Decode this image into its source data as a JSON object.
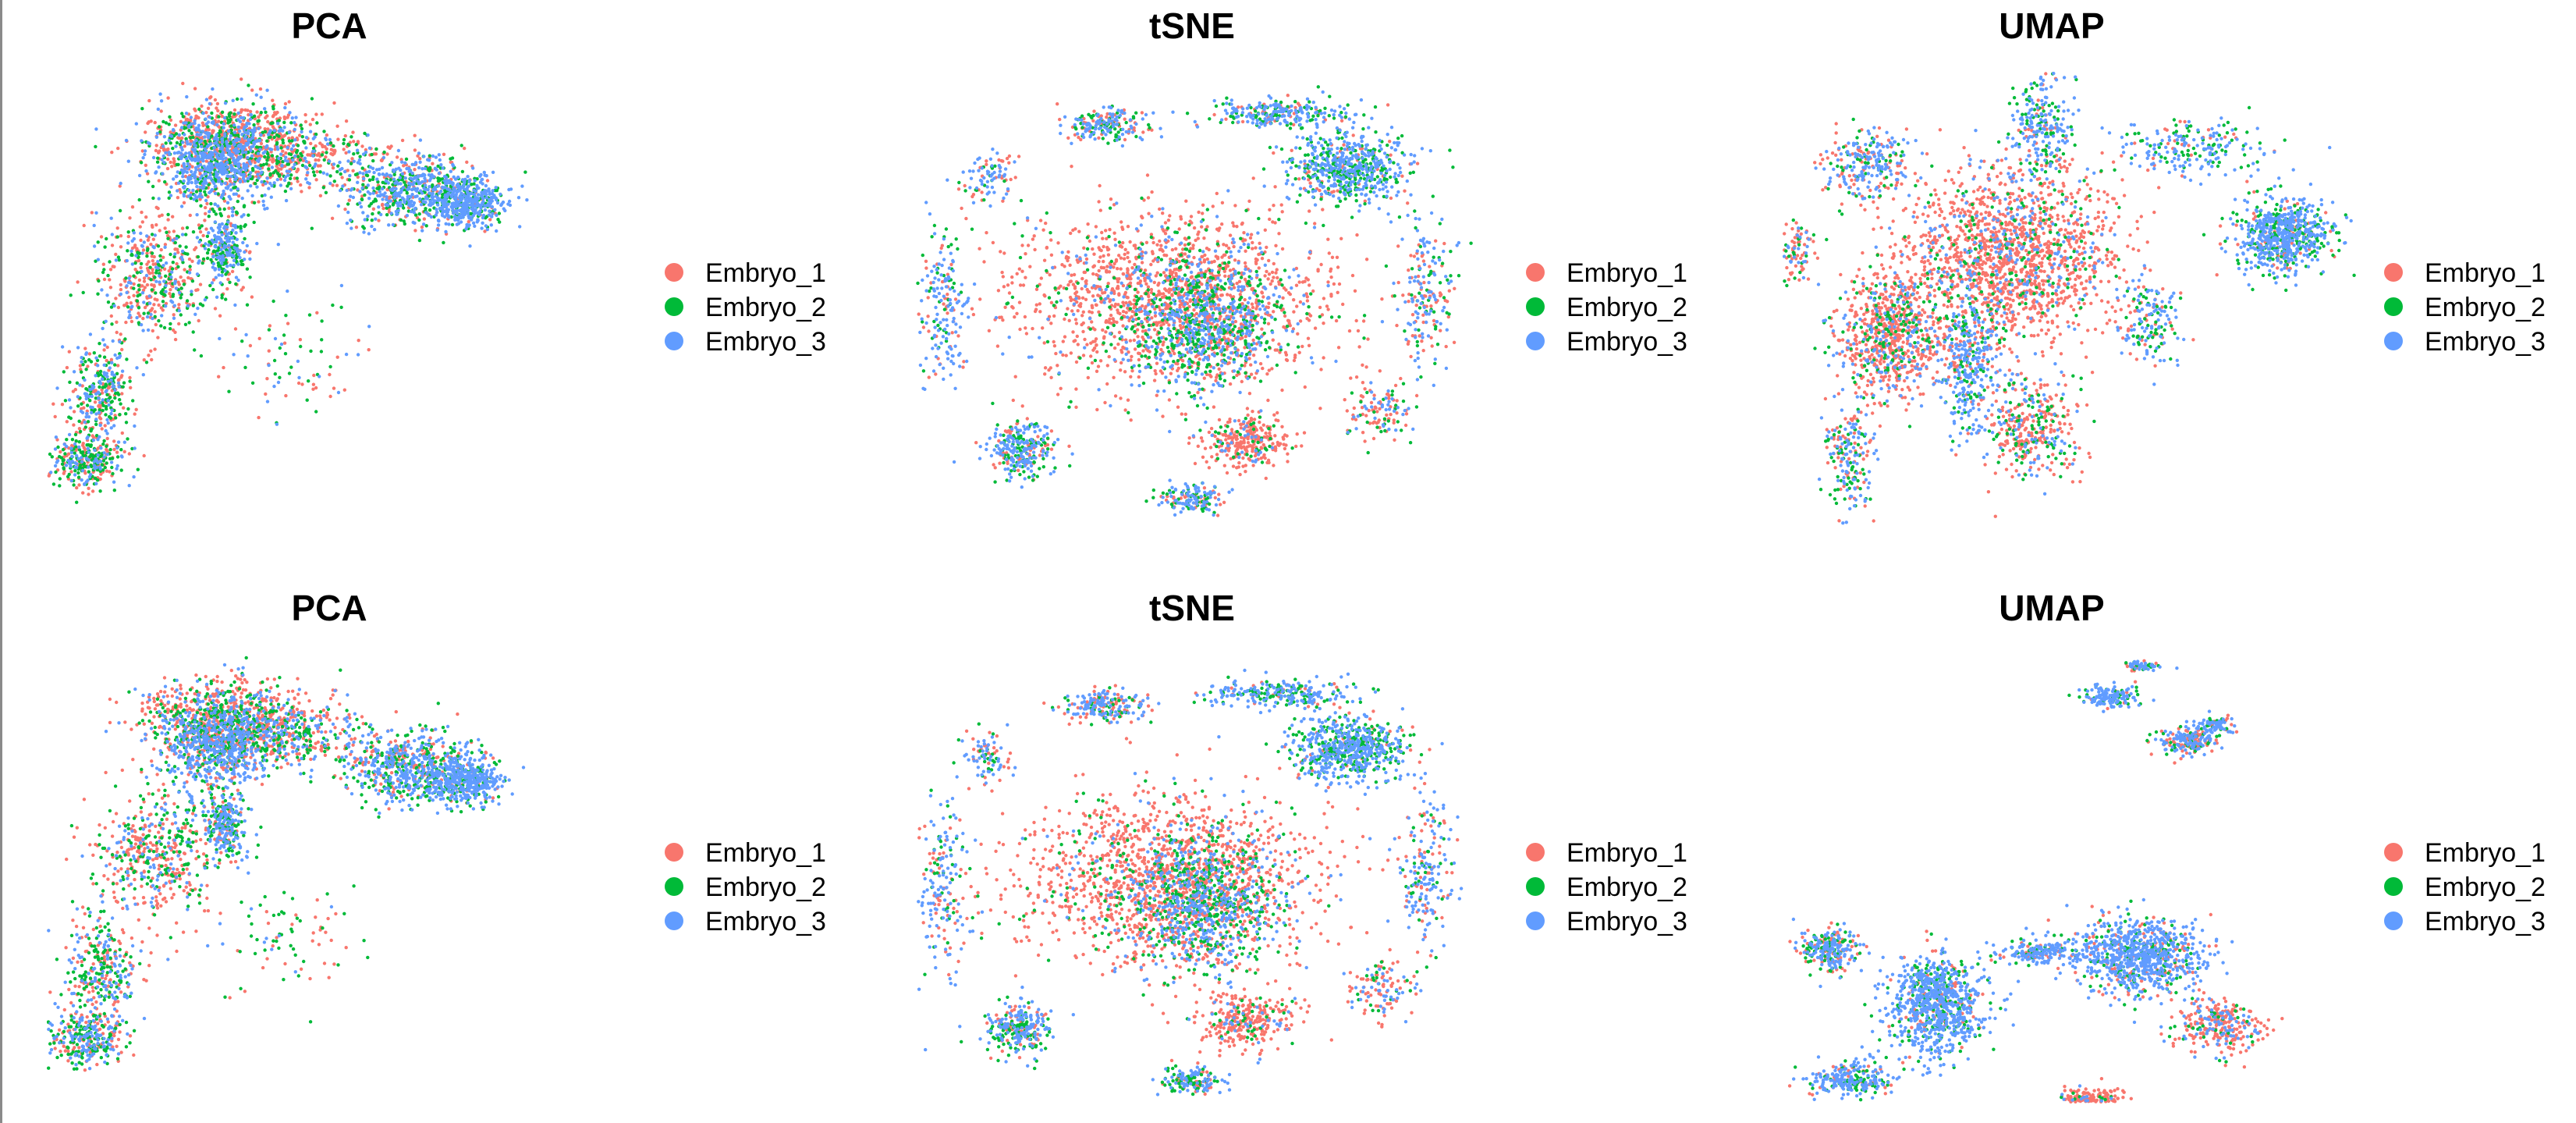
{
  "figure": {
    "panels": [
      {
        "id": "pca-top",
        "title": "PCA",
        "legend": [
          "Embryo_1",
          "Embryo_2",
          "Embryo_3"
        ]
      },
      {
        "id": "tsne-top",
        "title": "tSNE",
        "legend": [
          "Embryo_1",
          "Embryo_2",
          "Embryo_3"
        ]
      },
      {
        "id": "umap-top",
        "title": "UMAP",
        "legend": [
          "Embryo_1",
          "Embryo_2",
          "Embryo_3"
        ]
      },
      {
        "id": "pca-bottom",
        "title": "PCA",
        "legend": [
          "Embryo_1",
          "Embryo_2",
          "Embryo_3"
        ]
      },
      {
        "id": "tsne-bottom",
        "title": "tSNE",
        "legend": [
          "Embryo_1",
          "Embryo_2",
          "Embryo_3"
        ]
      },
      {
        "id": "umap-bottom",
        "title": "UMAP",
        "legend": [
          "Embryo_1",
          "Embryo_2",
          "Embryo_3"
        ]
      }
    ]
  },
  "chart_data": [
    {
      "type": "scatter",
      "title": "PCA",
      "xlabel": "",
      "ylabel": "",
      "grid": false,
      "axes": false,
      "legend_position": "right",
      "series": [
        {
          "name": "Embryo_1",
          "color": "#F8766D"
        },
        {
          "name": "Embryo_2",
          "color": "#00BA38"
        },
        {
          "name": "Embryo_3",
          "color": "#619CFF"
        }
      ]
    },
    {
      "type": "scatter",
      "title": "tSNE",
      "xlabel": "",
      "ylabel": "",
      "grid": false,
      "axes": false,
      "legend_position": "right",
      "series": [
        {
          "name": "Embryo_1",
          "color": "#F8766D"
        },
        {
          "name": "Embryo_2",
          "color": "#00BA38"
        },
        {
          "name": "Embryo_3",
          "color": "#619CFF"
        }
      ]
    },
    {
      "type": "scatter",
      "title": "UMAP",
      "xlabel": "",
      "ylabel": "",
      "grid": false,
      "axes": false,
      "legend_position": "right",
      "series": [
        {
          "name": "Embryo_1",
          "color": "#F8766D"
        },
        {
          "name": "Embryo_2",
          "color": "#00BA38"
        },
        {
          "name": "Embryo_3",
          "color": "#619CFF"
        }
      ]
    },
    {
      "type": "scatter",
      "title": "PCA",
      "xlabel": "",
      "ylabel": "",
      "grid": false,
      "axes": false,
      "legend_position": "right",
      "series": [
        {
          "name": "Embryo_1",
          "color": "#F8766D"
        },
        {
          "name": "Embryo_2",
          "color": "#00BA38"
        },
        {
          "name": "Embryo_3",
          "color": "#619CFF"
        }
      ]
    },
    {
      "type": "scatter",
      "title": "tSNE",
      "xlabel": "",
      "ylabel": "",
      "grid": false,
      "axes": false,
      "legend_position": "right",
      "series": [
        {
          "name": "Embryo_1",
          "color": "#F8766D"
        },
        {
          "name": "Embryo_2",
          "color": "#00BA38"
        },
        {
          "name": "Embryo_3",
          "color": "#619CFF"
        }
      ]
    },
    {
      "type": "scatter",
      "title": "UMAP",
      "xlabel": "",
      "ylabel": "",
      "grid": false,
      "axes": false,
      "legend_position": "right",
      "series": [
        {
          "name": "Embryo_1",
          "color": "#F8766D"
        },
        {
          "name": "Embryo_2",
          "color": "#00BA38"
        },
        {
          "name": "Embryo_3",
          "color": "#619CFF"
        }
      ]
    }
  ]
}
